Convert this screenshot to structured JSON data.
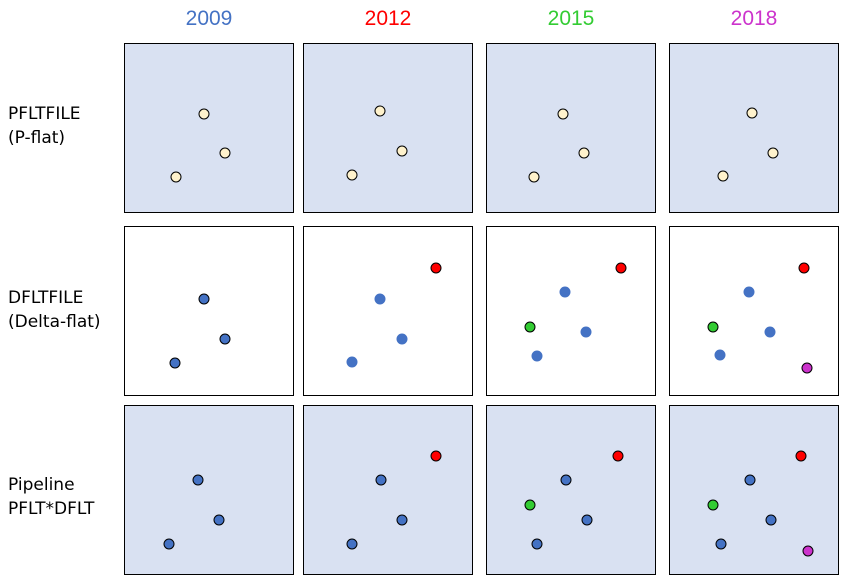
{
  "columns": [
    {
      "year": "2009",
      "color": "#4472c4"
    },
    {
      "year": "2012",
      "color": "#ff0000"
    },
    {
      "year": "2015",
      "color": "#33cc33"
    },
    {
      "year": "2018",
      "color": "#cc33cc"
    }
  ],
  "rows": [
    {
      "line1": "PFLTFILE",
      "line2": "(P-flat)",
      "style": "shaded"
    },
    {
      "line1": "DFLTFILE",
      "line2": "(Delta-flat)",
      "style": "plain"
    },
    {
      "line1": "Pipeline",
      "line2": "PFLT*DFLT",
      "style": "shaded"
    }
  ],
  "colors": {
    "pflat_dot": "#fff2cc",
    "base_dot": "#4472c4",
    "panel_shade": "#d9e1f2"
  }
}
